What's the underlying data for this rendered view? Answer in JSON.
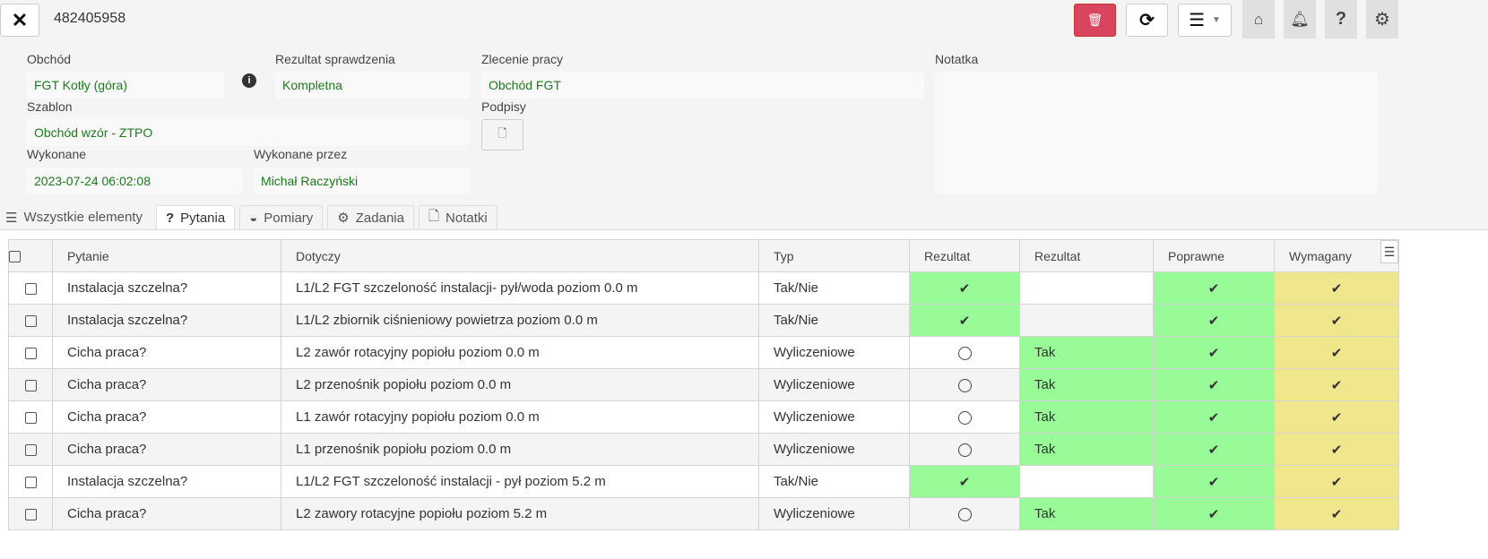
{
  "header": {
    "record_id": "482405958"
  },
  "toolbar": {
    "close_icon": "close-icon",
    "delete_icon": "trash-icon",
    "refresh_icon": "refresh-icon",
    "menu_icon": "bars-icon",
    "home_icon": "home-icon",
    "bell_icon": "bell-icon",
    "help_icon": "question-icon",
    "settings_icon": "gear-icon"
  },
  "form": {
    "obchod_label": "Obchód",
    "obchod_value": "FGT Kotły (góra)",
    "rezultat_label": "Rezultat sprawdzenia",
    "rezultat_value": "Kompletna",
    "zlecenie_label": "Zlecenie pracy",
    "zlecenie_value": "Obchód FGT",
    "notatka_label": "Notatka",
    "notatka_value": "",
    "szablon_label": "Szablon",
    "szablon_value": "Obchód wzór - ZTPO",
    "podpisy_label": "Podpisy",
    "wykonane_label": "Wykonane",
    "wykonane_value": "2023-07-24 06:02:08",
    "wykonane_przez_label": "Wykonane przez",
    "wykonane_przez_value": "Michał Raczyński"
  },
  "tabs": [
    {
      "label": "Wszystkie elementy",
      "icon": "list-icon"
    },
    {
      "label": "Pytania",
      "icon": "question-icon",
      "active": true
    },
    {
      "label": "Pomiary",
      "icon": "gauge-icon"
    },
    {
      "label": "Zadania",
      "icon": "cogs-icon"
    },
    {
      "label": "Notatki",
      "icon": "file-icon"
    }
  ],
  "table": {
    "columns": [
      "Pytanie",
      "Dotyczy",
      "Typ",
      "Rezultat",
      "Rezultat",
      "Poprawne",
      "Wymagany"
    ],
    "colors": {
      "ok": "#98fb98",
      "required": "#f0e68c"
    },
    "rows": [
      {
        "pytanie": "Instalacja szczelna?",
        "dotyczy": "L1/L2 FGT szczeloność instalacji- pył/woda poziom 0.0 m",
        "typ": "Tak/Nie",
        "rezultat": "check",
        "rezultat2": "",
        "poprawne": "check",
        "wymagany": "check"
      },
      {
        "pytanie": "Instalacja szczelna?",
        "dotyczy": "L1/L2 zbiornik ciśnieniowy powietrza poziom 0.0 m",
        "typ": "Tak/Nie",
        "rezultat": "check",
        "rezultat2": "",
        "poprawne": "check",
        "wymagany": "check"
      },
      {
        "pytanie": "Cicha praca?",
        "dotyczy": "L2 zawór rotacyjny popiołu poziom 0.0 m",
        "typ": "Wyliczeniowe",
        "rezultat": "circle",
        "rezultat2": "Tak",
        "poprawne": "check",
        "wymagany": "check"
      },
      {
        "pytanie": "Cicha praca?",
        "dotyczy": "L2 przenośnik popiołu poziom 0.0 m",
        "typ": "Wyliczeniowe",
        "rezultat": "circle",
        "rezultat2": "Tak",
        "poprawne": "check",
        "wymagany": "check"
      },
      {
        "pytanie": "Cicha praca?",
        "dotyczy": "L1 zawór rotacyjny popiołu poziom 0.0 m",
        "typ": "Wyliczeniowe",
        "rezultat": "circle",
        "rezultat2": "Tak",
        "poprawne": "check",
        "wymagany": "check"
      },
      {
        "pytanie": "Cicha praca?",
        "dotyczy": "L1 przenośnik popiołu poziom 0.0 m",
        "typ": "Wyliczeniowe",
        "rezultat": "circle",
        "rezultat2": "Tak",
        "poprawne": "check",
        "wymagany": "check"
      },
      {
        "pytanie": "Instalacja szczelna?",
        "dotyczy": "L1/L2 FGT szczeloność instalacji - pył poziom 5.2 m",
        "typ": "Tak/Nie",
        "rezultat": "check",
        "rezultat2": "",
        "poprawne": "check",
        "wymagany": "check"
      },
      {
        "pytanie": "Cicha praca?",
        "dotyczy": "L2 zawory rotacyjne popiołu poziom 5.2 m",
        "typ": "Wyliczeniowe",
        "rezultat": "circle",
        "rezultat2": "Tak",
        "poprawne": "check",
        "wymagany": "check"
      }
    ]
  }
}
